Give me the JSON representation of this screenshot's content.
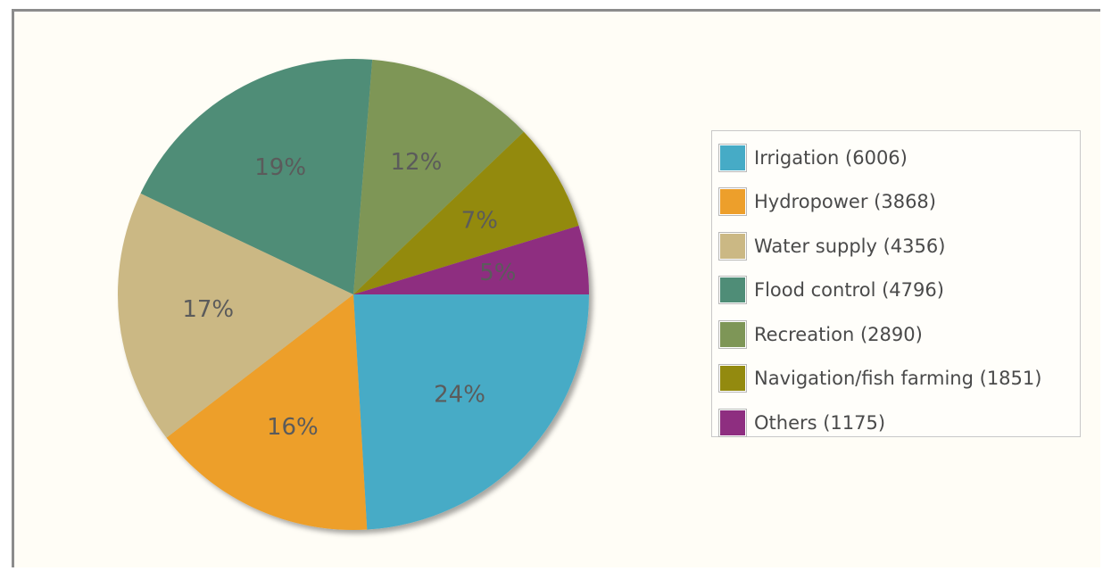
{
  "chart_data": {
    "type": "pie",
    "start_angle_deg": 0,
    "direction": "clockwise",
    "legend_position": "right",
    "slices": [
      {
        "legend": "Irrigation (6006)",
        "value": 6006,
        "percent_label": "24%",
        "color": "#46abc6"
      },
      {
        "legend": "Hydropower (3868)",
        "value": 3868,
        "percent_label": "16%",
        "color": "#ed9f2b"
      },
      {
        "legend": "Water supply (4356)",
        "value": 4356,
        "percent_label": "17%",
        "color": "#cbb884"
      },
      {
        "legend": "Flood control (4796)",
        "value": 4796,
        "percent_label": "19%",
        "color": "#4f8d77"
      },
      {
        "legend": "Recreation (2890)",
        "value": 2890,
        "percent_label": "12%",
        "color": "#7e9657"
      },
      {
        "legend": "Navigation/fish farming (1851)",
        "value": 1851,
        "percent_label": "7%",
        "color": "#938a0f"
      },
      {
        "legend": "Others (1175)",
        "value": 1175,
        "percent_label": "5%",
        "color": "#8e2e80"
      }
    ]
  }
}
